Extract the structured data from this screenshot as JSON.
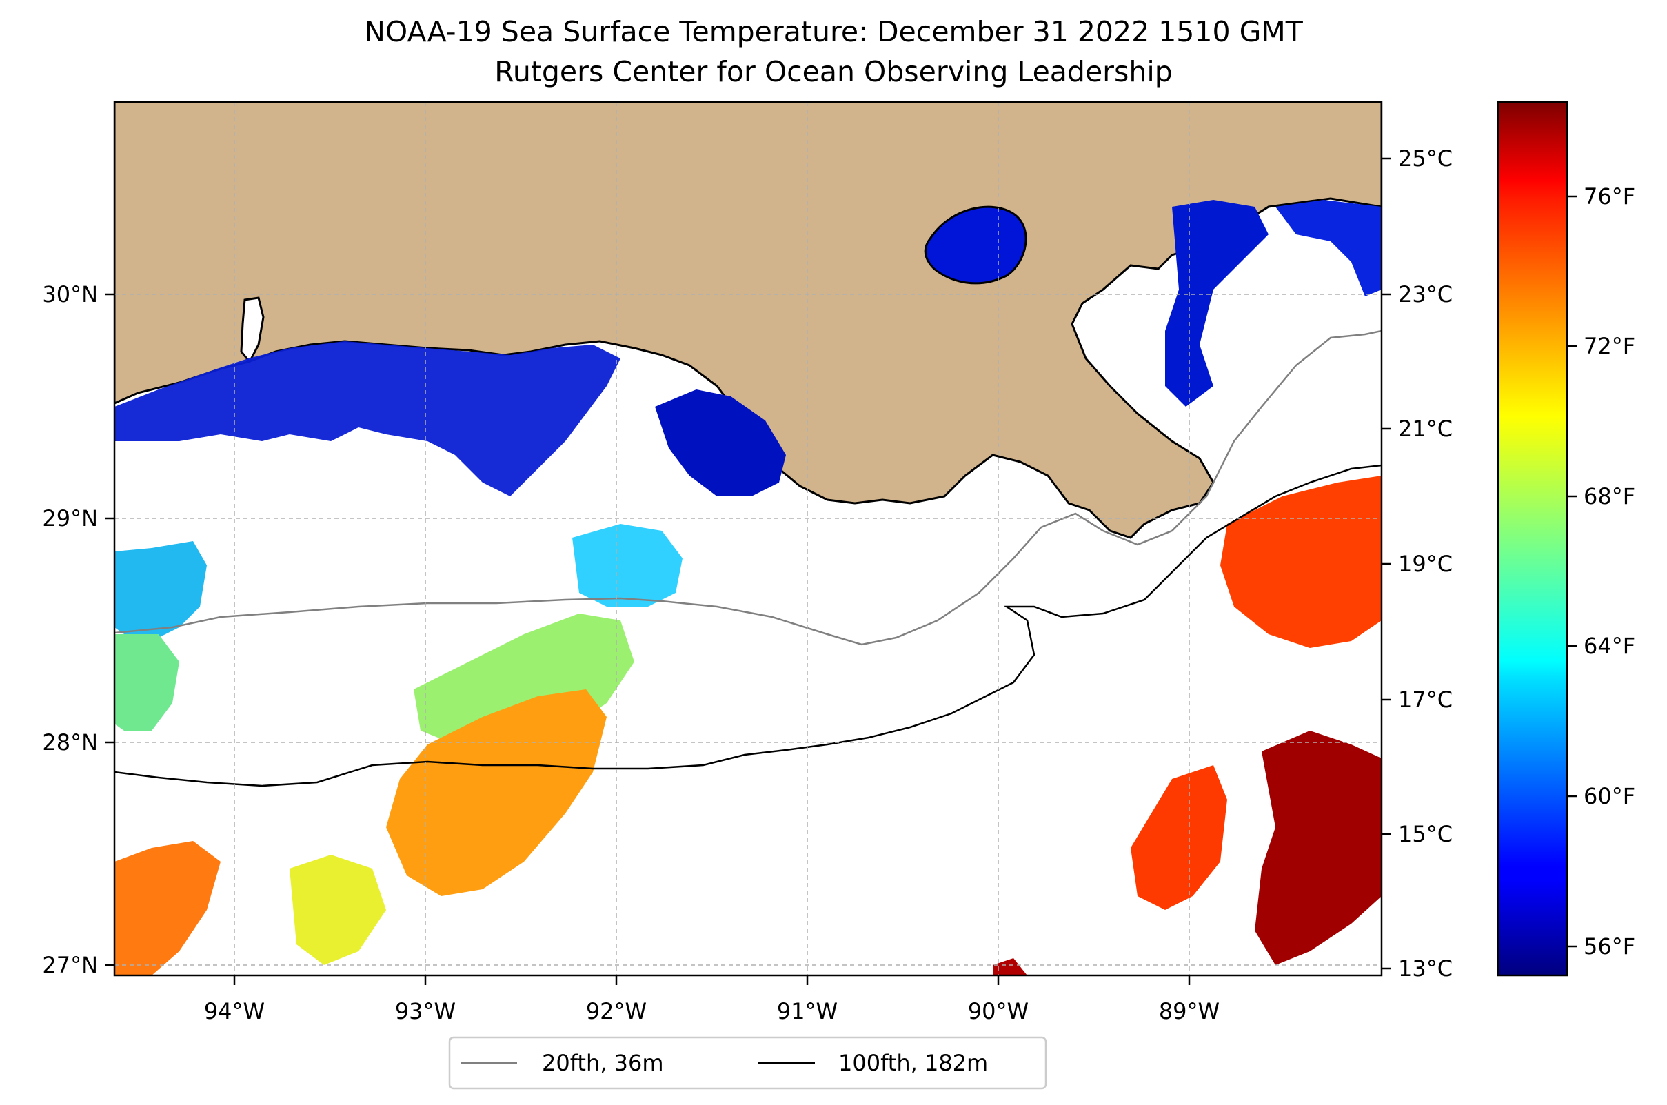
{
  "title": "NOAA-19 Sea Surface Temperature: December 31 2022 1510 GMT",
  "subtitle": "Rutgers Center for Ocean Observing Leadership",
  "map": {
    "lon_ticks": [
      "94°W",
      "93°W",
      "92°W",
      "91°W",
      "90°W",
      "89°W"
    ],
    "lat_ticks": [
      "30°N",
      "29°N",
      "28°N",
      "27°N"
    ],
    "land_color": "#d2b48c",
    "grid": true
  },
  "legend": {
    "items": [
      {
        "label": "20fth, 36m",
        "color": "#808080"
      },
      {
        "label": "100fth, 182m",
        "color": "#000000"
      }
    ]
  },
  "colorbar": {
    "colormap": "jet",
    "celsius_labels": [
      "25°C",
      "23°C",
      "21°C",
      "19°C",
      "17°C",
      "15°C",
      "13°C"
    ],
    "fahrenheit_labels": [
      "76°F",
      "72°F",
      "68°F",
      "64°F",
      "60°F",
      "56°F"
    ]
  }
}
